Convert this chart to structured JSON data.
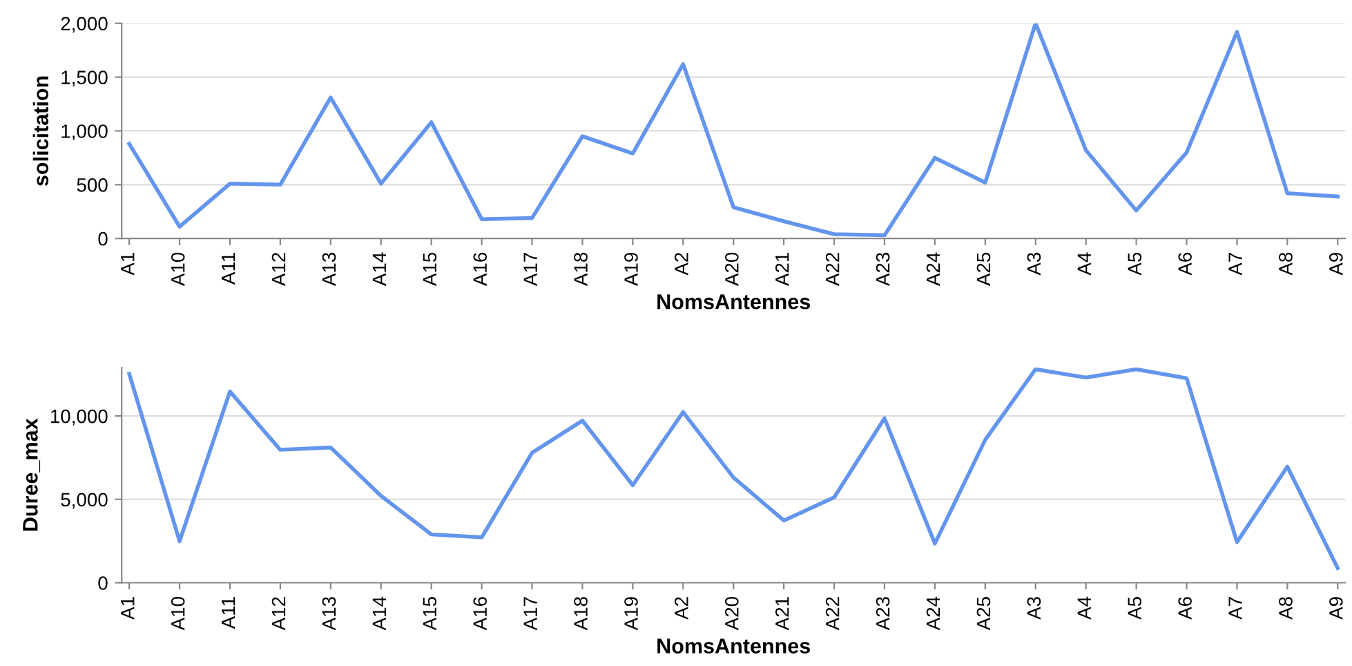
{
  "chart_data": [
    {
      "type": "line",
      "xlabel": "NomsAntennes",
      "ylabel": "solicitation",
      "categories": [
        "A1",
        "A10",
        "A11",
        "A12",
        "A13",
        "A14",
        "A15",
        "A16",
        "A17",
        "A18",
        "A19",
        "A2",
        "A20",
        "A21",
        "A22",
        "A23",
        "A24",
        "A25",
        "A3",
        "A4",
        "A5",
        "A6",
        "A7",
        "A8",
        "A9"
      ],
      "series": [
        {
          "color": "#6495ed",
          "values": [
            880,
            110,
            510,
            500,
            1310,
            510,
            1080,
            180,
            190,
            950,
            790,
            1620,
            290,
            160,
            40,
            30,
            750,
            520,
            2000,
            820,
            260,
            800,
            1920,
            420,
            390
          ]
        }
      ],
      "ylim": [
        0,
        2000
      ],
      "yticks": [
        0,
        {
          "value": 500,
          "label": "500"
        },
        {
          "value": 1000,
          "label": "1,000"
        },
        {
          "value": 1500,
          "label": "1,500"
        },
        {
          "value": 2000,
          "label": "2,000"
        }
      ],
      "grid": "y",
      "line_style": "solid",
      "marker": "none"
    },
    {
      "type": "line",
      "xlabel": "NomsAntennes",
      "ylabel": "Duree_max",
      "categories": [
        "A1",
        "A10",
        "A11",
        "A12",
        "A13",
        "A14",
        "A15",
        "A16",
        "A17",
        "A18",
        "A19",
        "A2",
        "A20",
        "A21",
        "A22",
        "A23",
        "A24",
        "A25",
        "A3",
        "A4",
        "A5",
        "A6",
        "A7",
        "A8",
        "A9"
      ],
      "series": [
        {
          "color": "#6495ed",
          "values": [
            12530,
            2490,
            11470,
            7970,
            8110,
            5210,
            2900,
            2720,
            7790,
            9720,
            5850,
            10230,
            6310,
            3730,
            5120,
            9860,
            2350,
            8570,
            12800,
            12300,
            12800,
            12260,
            2440,
            6960,
            880
          ]
        }
      ],
      "ylim": [
        0,
        12900
      ],
      "yticks": [
        0,
        {
          "value": 5000,
          "label": "5,000"
        },
        {
          "value": 10000,
          "label": "10,000"
        }
      ],
      "grid": "y",
      "line_style": "solid",
      "marker": "none"
    }
  ]
}
